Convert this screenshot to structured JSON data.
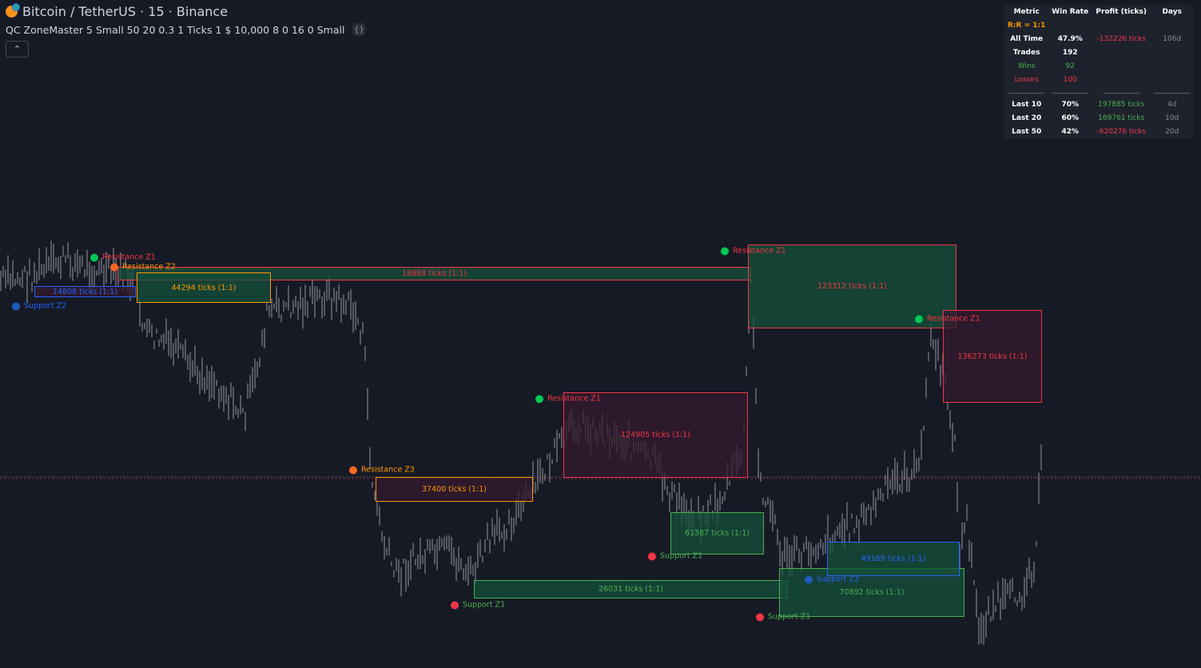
{
  "header": {
    "symbol": "Bitcoin / TetherUS · 15 · Binance",
    "indicator": "QC ZoneMaster 5 Small 50 20 0.3 1 Ticks 1 $ 10,000 8 0 16 0 Small",
    "collapse_icon": "chevron-up-icon",
    "source_code_icon": "code-braces-icon"
  },
  "colors": {
    "background": "#161a25",
    "green": "#4caf50",
    "red": "#f23645",
    "orange": "#ff9800",
    "blue": "#2962ff",
    "price": "#9598a1"
  },
  "stats": {
    "headers": [
      "Metric",
      "Win Rate",
      "Profit (ticks)",
      "Days"
    ],
    "rr": "R:R = 1:1",
    "all_time": {
      "label": "All Time",
      "win_rate": "47.9%",
      "profit": "-132226 ticks",
      "days": "106d"
    },
    "trades": {
      "label": "Trades",
      "value": "192"
    },
    "wins": {
      "label": "Wins",
      "value": "92"
    },
    "losses": {
      "label": "Losses",
      "value": "100"
    },
    "separator": "__________",
    "recent": [
      {
        "label": "Last 10",
        "win_rate": "70%",
        "profit": "197885 ticks",
        "days": "4d"
      },
      {
        "label": "Last 20",
        "win_rate": "60%",
        "profit": "169761 ticks",
        "days": "10d"
      },
      {
        "label": "Last 50",
        "win_rate": "42%",
        "profit": "-620276 ticks",
        "days": "20d"
      }
    ]
  },
  "zones": [
    {
      "label": "14808 ticks (1:1)"
    },
    {
      "label": "18888 ticks (1:1)"
    },
    {
      "label": "44294 ticks (1:1)"
    },
    {
      "label": "123312 ticks (1:1)"
    },
    {
      "label": "136273 ticks (1:1)"
    },
    {
      "label": "124905 ticks (1:1)"
    },
    {
      "label": "37400 ticks (1:1)"
    },
    {
      "label": "61387 ticks (1:1)"
    },
    {
      "label": "26031 ticks (1:1)"
    },
    {
      "label": "49169 ticks (1:1)"
    },
    {
      "label": "70892 ticks (1:1)"
    }
  ],
  "markers": [
    {
      "label": "Resistance Z1"
    },
    {
      "label": "Resistance Z2"
    },
    {
      "label": "Support Z2"
    },
    {
      "label": "Resistance Z1"
    },
    {
      "label": "Resistance Z1"
    },
    {
      "label": "Resistance Z1"
    },
    {
      "label": "Resistance Z3"
    },
    {
      "label": "Support Z1"
    },
    {
      "label": "Support Z1"
    },
    {
      "label": "Support Z2"
    },
    {
      "label": "Support Z1"
    }
  ]
}
